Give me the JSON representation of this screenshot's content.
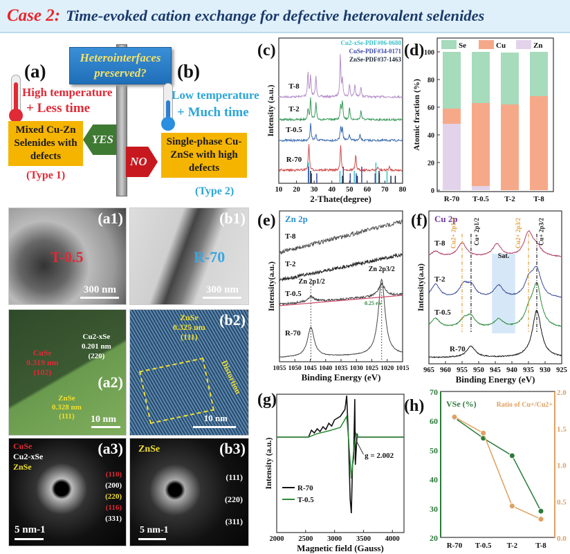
{
  "title": {
    "case": "Case 2:",
    "text": "Time-evoked cation exchange for defective heterovalent selenides"
  },
  "scheme": {
    "label_a": "(a)",
    "label_b": "(b)",
    "sign": "Heterointerfaces preserved?",
    "a_cond1": "High temperature",
    "a_cond2": "+ Less time",
    "b_cond1": "Low temperature",
    "b_cond2": "+ Much time",
    "yes": "YES",
    "no": "NO",
    "a_box": "Mixed Cu-Zn Selenides with defects",
    "a_type": "(Type 1)",
    "b_box": "Single-phase Cu-ZnSe with high defects",
    "b_type": "(Type 2)",
    "colors": {
      "hot": "#e02a36",
      "cold": "#2aa6d9",
      "box": "#f5b400"
    }
  },
  "micrographs": {
    "a1": {
      "label": "(a1)",
      "sample": "T-0.5",
      "scale": "300 nm"
    },
    "b1": {
      "label": "(b1)",
      "sample": "R-70",
      "scale": "300 nm"
    },
    "a2": {
      "label": "(a2)",
      "scale": "10 nm",
      "cuse": "CuSe",
      "cuse_d": "0.319 nm",
      "cuse_hkl": "(102)",
      "cu2se": "Cu2-xSe",
      "cu2se_d": "0.201 nm",
      "cu2se_hkl": "(220)",
      "znse": "ZnSe",
      "znse_d": "0.328 nm",
      "znse_hkl": "(111)"
    },
    "b2": {
      "label": "(b2)",
      "scale": "10 nm",
      "znse": "ZnSe",
      "d": "0.325 nm",
      "hkl": "(111)",
      "note": "Distortion"
    },
    "a3": {
      "label": "(a3)",
      "scale": "5 nm-1",
      "phases": [
        "CuSe",
        "Cu2-xSe",
        "ZnSe"
      ],
      "rings": [
        "(110)",
        "(200)",
        "(220)",
        "(116)",
        "(331)"
      ]
    },
    "b3": {
      "label": "(b3)",
      "scale": "5 nm-1",
      "phase": "ZnSe",
      "rings": [
        "(111)",
        "(220)",
        "(311)"
      ]
    }
  },
  "chart_data": [
    {
      "id": "c",
      "panel": "(c)",
      "type": "line",
      "xlabel": "2-Thate(degree)",
      "ylabel": "Intensity (a.u.)",
      "xlim": [
        10,
        80
      ],
      "xticks": [
        10,
        20,
        30,
        40,
        50,
        60,
        70,
        80
      ],
      "references": [
        {
          "name": "Cu2-xSe-PDF#06-0680",
          "color": "#3cc0c8",
          "sticks": [
            26.7,
            44.6,
            52.7,
            64.9,
            71.2
          ]
        },
        {
          "name": "CuSe-PDF#34-0171",
          "color": "#3b4aa8",
          "sticks": [
            26.5,
            28.1,
            31.1,
            46.1,
            50.0,
            53.4,
            56.5,
            64.1,
            66.5
          ]
        },
        {
          "name": "ZnSe-PDF#37-1463",
          "color": "#1b2a3a",
          "sticks": [
            27.2,
            45.2,
            53.6,
            65.9,
            72.6,
            75.1
          ]
        }
      ],
      "series": [
        {
          "name": "T-8",
          "color": "#b58fc9",
          "peaks": [
            [
              26.5,
              0.6
            ],
            [
              28,
              0.5
            ],
            [
              31,
              0.5
            ],
            [
              44.8,
              1.0
            ],
            [
              46,
              0.4
            ],
            [
              50,
              0.3
            ],
            [
              53,
              0.3
            ],
            [
              56.5,
              0.25
            ]
          ]
        },
        {
          "name": "T-2",
          "color": "#3a9a5a",
          "peaks": [
            [
              26.5,
              0.25
            ],
            [
              28,
              0.5
            ],
            [
              31,
              0.4
            ],
            [
              45,
              0.35
            ],
            [
              46,
              0.45
            ],
            [
              50,
              0.28
            ],
            [
              56.5,
              0.22
            ]
          ]
        },
        {
          "name": "T-0.5",
          "color": "#3a6ab0",
          "peaks": [
            [
              28,
              0.42
            ],
            [
              31,
              0.15
            ],
            [
              45,
              0.33
            ],
            [
              46,
              0.3
            ],
            [
              50,
              0.14
            ],
            [
              56,
              0.14
            ]
          ]
        },
        {
          "name": "R-70",
          "color": "#d04a4a",
          "peaks": [
            [
              27,
              0.65
            ],
            [
              45,
              0.6
            ],
            [
              53.5,
              0.35
            ],
            [
              66,
              0.08
            ],
            [
              72.5,
              0.08
            ]
          ]
        }
      ]
    },
    {
      "id": "d",
      "panel": "(d)",
      "type": "bar",
      "stacked": true,
      "ylabel": "Atomic fraction (%)",
      "ylim": [
        0,
        100
      ],
      "yticks": [
        0,
        20,
        40,
        60,
        80,
        100
      ],
      "legend": "top",
      "categories": [
        "R-70",
        "T-0.5",
        "T-2",
        "T-8"
      ],
      "series": [
        {
          "name": "Zn",
          "color": "#e2d3ea",
          "values": [
            48,
            3,
            0,
            0
          ]
        },
        {
          "name": "Cu",
          "color": "#f6a989",
          "values": [
            11,
            60,
            62,
            68
          ]
        },
        {
          "name": "Se",
          "color": "#a6dbbb",
          "values": [
            41,
            37,
            37.5,
            32
          ]
        }
      ]
    },
    {
      "id": "e",
      "panel": "(e)",
      "type": "line",
      "title": "Zn 2p",
      "xlabel": "Binding Energy (eV)",
      "ylabel": "Intensity(a.u.)",
      "xlim": [
        1055,
        1015
      ],
      "xticks": [
        1055,
        1050,
        1045,
        1040,
        1035,
        1030,
        1025,
        1020,
        1015
      ],
      "annotations": [
        "Zn 2p1/2",
        "Zn 2p3/2",
        "0.25 eV"
      ],
      "series": [
        {
          "name": "T-8",
          "color": "#555",
          "peaks": []
        },
        {
          "name": "T-2",
          "color": "#222",
          "peaks": []
        },
        {
          "name": "T-0.5",
          "color": "#444",
          "peaks": [
            [
              1044.8,
              0.15
            ],
            [
              1021.8,
              0.35
            ]
          ]
        },
        {
          "name": "R-70",
          "color": "#444",
          "peaks": [
            [
              1044.8,
              0.85
            ],
            [
              1021.8,
              2.2
            ]
          ]
        }
      ]
    },
    {
      "id": "f",
      "panel": "(f)",
      "type": "line",
      "title": "Cu 2p",
      "xlabel": "Binding Energy (eV)",
      "ylabel": "Intensity(a.u)",
      "xlim": [
        965,
        925
      ],
      "xticks": [
        965,
        960,
        955,
        950,
        945,
        940,
        935,
        930,
        925
      ],
      "annotations": [
        "Cu2+ 2p1/2",
        "Cu+ 2p1/2",
        "Sat.",
        "Cu2+ 2p3/2",
        "Cu+ 2p3/2"
      ],
      "series": [
        {
          "name": "T-8",
          "color": "#b0406a",
          "peaks": [
            [
              963,
              0.2
            ],
            [
              955,
              0.5
            ],
            [
              944.5,
              0.45
            ],
            [
              935,
              0.85
            ],
            [
              932.5,
              0.3
            ]
          ]
        },
        {
          "name": "T-2",
          "color": "#3c4c9a",
          "peaks": [
            [
              963,
              0.5
            ],
            [
              954.5,
              0.45
            ],
            [
              952.2,
              0.4
            ],
            [
              944,
              0.45
            ],
            [
              934.8,
              0.6
            ],
            [
              932.5,
              0.95
            ]
          ]
        },
        {
          "name": "T-0.5",
          "color": "#2e8a3a",
          "peaks": [
            [
              963,
              0.35
            ],
            [
              954.5,
              0.25
            ],
            [
              952.4,
              0.4
            ],
            [
              944,
              0.3
            ],
            [
              934.8,
              0.5
            ],
            [
              932.5,
              1.5
            ]
          ]
        },
        {
          "name": "R-70",
          "color": "#111",
          "peaks": [
            [
              952.3,
              0.4
            ],
            [
              932.5,
              1.7
            ]
          ]
        }
      ]
    },
    {
      "id": "g",
      "panel": "(g)",
      "type": "line",
      "xlabel": "Magnetic field (Gauss)",
      "ylabel": "Intensity (a.u.)",
      "xlim": [
        2000,
        4200
      ],
      "xticks": [
        2000,
        2500,
        3000,
        3500,
        4000
      ],
      "annotation": "g = 2.002",
      "legend": "bottom-left",
      "series": [
        {
          "name": "R-70",
          "color": "#111",
          "points": [
            [
              2000,
              0
            ],
            [
              2550,
              0
            ],
            [
              2600,
              0.1
            ],
            [
              2650,
              0.06
            ],
            [
              2700,
              0.12
            ],
            [
              2750,
              0.08
            ],
            [
              2800,
              0.15
            ],
            [
              2850,
              0.11
            ],
            [
              2900,
              0.2
            ],
            [
              2950,
              0.16
            ],
            [
              3000,
              0.25
            ],
            [
              3100,
              0.3
            ],
            [
              3180,
              0.4
            ],
            [
              3210,
              0.6
            ],
            [
              3240,
              0
            ],
            [
              3270,
              -0.9
            ],
            [
              3290,
              -1.1
            ],
            [
              3310,
              -0.4
            ],
            [
              3330,
              -0.3
            ],
            [
              3350,
              0.55
            ],
            [
              3360,
              -0.4
            ],
            [
              3390,
              0.05
            ],
            [
              3400,
              0
            ],
            [
              4200,
              0
            ]
          ]
        },
        {
          "name": "T-0.5",
          "color": "#2f8a3a",
          "points": [
            [
              2000,
              0
            ],
            [
              2550,
              0
            ],
            [
              2700,
              0.05
            ],
            [
              2900,
              0.09
            ],
            [
              3100,
              0.14
            ],
            [
              3210,
              0.3
            ],
            [
              3240,
              0
            ],
            [
              3290,
              -0.6
            ],
            [
              3330,
              -0.2
            ],
            [
              3370,
              0.05
            ],
            [
              3400,
              0
            ],
            [
              4200,
              0
            ]
          ]
        }
      ]
    },
    {
      "id": "h",
      "panel": "(h)",
      "type": "line",
      "dual_axis": true,
      "categories": [
        "R-70",
        "T-0.5",
        "T-2",
        "T-8"
      ],
      "ylim_left": [
        20,
        70
      ],
      "yticks_left": [
        20,
        30,
        40,
        50,
        60,
        70
      ],
      "ylim_right": [
        0,
        2
      ],
      "yticks_right": [
        "0.0",
        "0.5",
        "1.0",
        "1.5",
        "2.0"
      ],
      "series": [
        {
          "name": "VSe (%)",
          "axis": "left",
          "color": "#2b7a3a",
          "values": [
            61,
            54,
            48,
            29
          ]
        },
        {
          "name": "Ratio of Cu+/Cu2+",
          "axis": "right",
          "color": "#e0a060",
          "values": [
            1.65,
            1.43,
            0.43,
            0.25
          ]
        }
      ]
    }
  ]
}
